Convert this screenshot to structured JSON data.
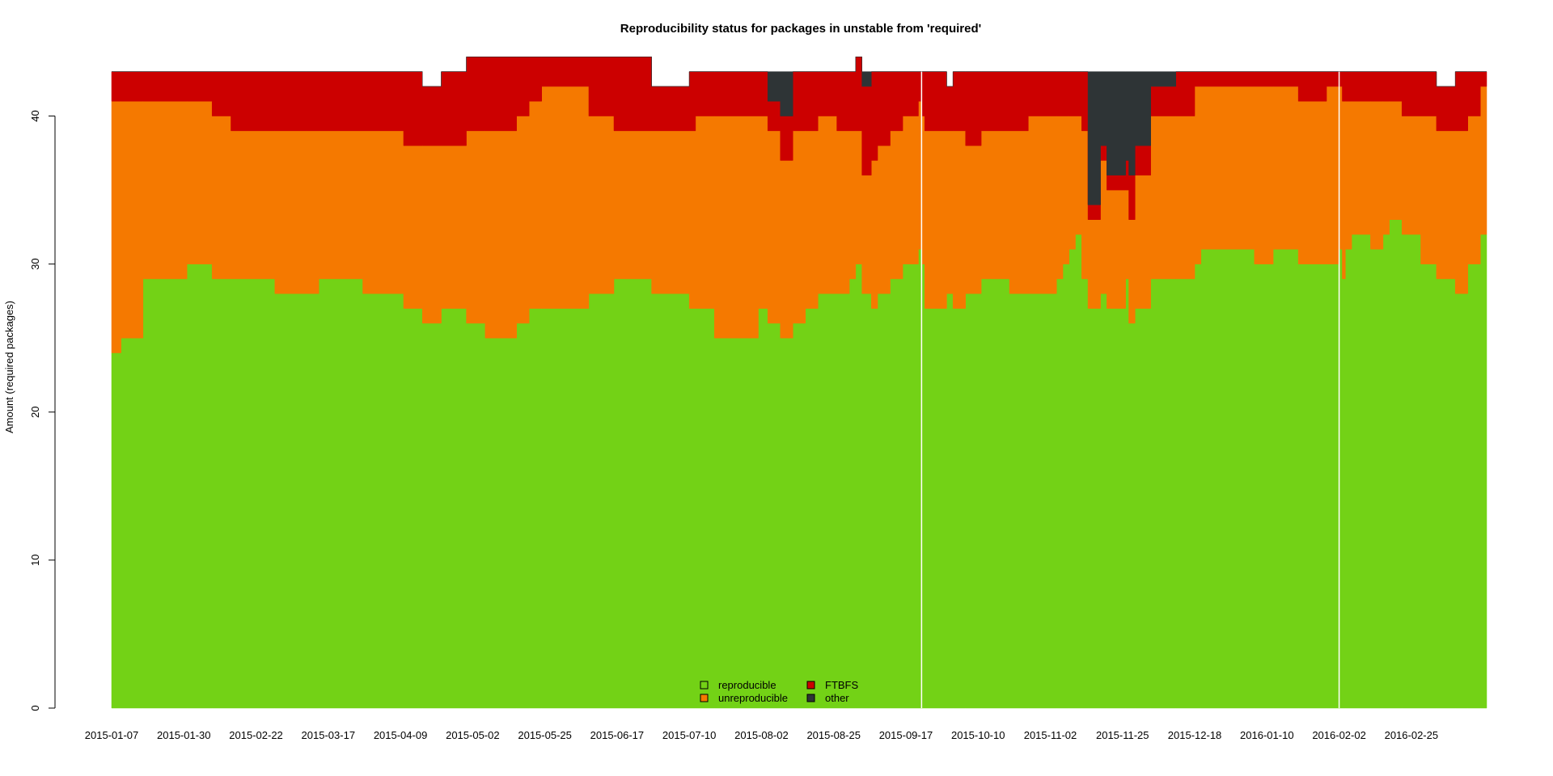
{
  "chart_data": {
    "type": "area",
    "stacked": true,
    "title": "Reproducibility status for packages in unstable from 'required'",
    "xlabel": "",
    "ylabel": "Amount (required packages)",
    "ylim": [
      0,
      43
    ],
    "yticks": [
      0,
      10,
      20,
      30,
      40
    ],
    "x_tick_labels": [
      "2015-01-07",
      "2015-01-30",
      "2015-02-22",
      "2015-03-17",
      "2015-04-09",
      "2015-05-02",
      "2015-05-25",
      "2015-06-17",
      "2015-07-10",
      "2015-08-02",
      "2015-08-25",
      "2015-09-17",
      "2015-10-10",
      "2015-11-02",
      "2015-11-25",
      "2015-12-18",
      "2016-01-10",
      "2016-02-02",
      "2016-02-25"
    ],
    "x_range": [
      "2015-01-07",
      "2016-03-20"
    ],
    "grid": false,
    "legend_position": "bottom-center",
    "colors": {
      "reproducible": "#73d216",
      "unreproducible": "#f57900",
      "FTBFS": "#cc0000",
      "other": "#2e3436",
      "legend_border": "#000000"
    },
    "legend": [
      {
        "name": "reproducible",
        "color": "#73d216"
      },
      {
        "name": "unreproducible",
        "color": "#f57900"
      },
      {
        "name": "FTBFS",
        "color": "#cc0000"
      },
      {
        "name": "other",
        "color": "#2e3436"
      }
    ],
    "x": [
      "2015-01-07",
      "2015-01-10",
      "2015-01-17",
      "2015-01-31",
      "2015-02-08",
      "2015-02-14",
      "2015-02-28",
      "2015-03-10",
      "2015-03-14",
      "2015-03-28",
      "2015-04-10",
      "2015-04-16",
      "2015-04-22",
      "2015-04-30",
      "2015-05-06",
      "2015-05-16",
      "2015-05-20",
      "2015-05-24",
      "2015-06-08",
      "2015-06-16",
      "2015-06-20",
      "2015-06-28",
      "2015-07-10",
      "2015-07-12",
      "2015-07-18",
      "2015-08-01",
      "2015-08-04",
      "2015-08-08",
      "2015-08-12",
      "2015-08-16",
      "2015-08-20",
      "2015-08-26",
      "2015-08-30",
      "2015-09-01",
      "2015-09-03",
      "2015-09-06",
      "2015-09-08",
      "2015-09-12",
      "2015-09-16",
      "2015-09-21",
      "2015-09-22",
      "2015-09-23",
      "2015-09-30",
      "2015-10-02",
      "2015-10-06",
      "2015-10-11",
      "2015-10-20",
      "2015-10-26",
      "2015-11-04",
      "2015-11-06",
      "2015-11-08",
      "2015-11-10",
      "2015-11-12",
      "2015-11-14",
      "2015-11-18",
      "2015-11-20",
      "2015-11-26",
      "2015-11-27",
      "2015-11-29",
      "2015-12-04",
      "2015-12-12",
      "2015-12-18",
      "2015-12-20",
      "2016-01-06",
      "2016-01-12",
      "2016-01-20",
      "2016-01-29",
      "2016-02-02",
      "2016-02-03",
      "2016-02-04",
      "2016-02-06",
      "2016-02-12",
      "2016-02-16",
      "2016-02-18",
      "2016-02-22",
      "2016-02-28",
      "2016-03-04",
      "2016-03-10",
      "2016-03-14",
      "2016-03-18"
    ],
    "series": [
      {
        "name": "reproducible",
        "values": [
          24,
          25,
          29,
          30,
          29,
          29,
          28,
          28,
          29,
          28,
          27,
          26,
          27,
          26,
          25,
          26,
          27,
          27,
          28,
          29,
          29,
          28,
          27,
          27,
          25,
          27,
          26,
          25,
          26,
          27,
          28,
          28,
          29,
          30,
          28,
          27,
          28,
          29,
          30,
          31,
          30,
          27,
          28,
          27,
          28,
          29,
          28,
          28,
          29,
          30,
          31,
          32,
          29,
          27,
          28,
          27,
          29,
          26,
          27,
          29,
          29,
          30,
          31,
          30,
          31,
          30,
          30,
          31,
          29,
          31,
          32,
          31,
          32,
          33,
          32,
          30,
          29,
          28,
          30,
          32
        ]
      },
      {
        "name": "unreproducible",
        "values": [
          17,
          16,
          12,
          11,
          11,
          10,
          11,
          11,
          10,
          11,
          11,
          12,
          11,
          13,
          14,
          14,
          14,
          15,
          12,
          10,
          10,
          11,
          12,
          13,
          15,
          13,
          13,
          12,
          13,
          12,
          12,
          11,
          10,
          9,
          8,
          10,
          10,
          10,
          10,
          10,
          10,
          12,
          11,
          12,
          10,
          10,
          11,
          12,
          11,
          10,
          9,
          8,
          10,
          6,
          9,
          8,
          6,
          7,
          9,
          11,
          11,
          12,
          11,
          12,
          11,
          11,
          12,
          11,
          12,
          10,
          9,
          10,
          9,
          8,
          8,
          10,
          10,
          11,
          10,
          10
        ]
      },
      {
        "name": "FTBFS",
        "values": [
          2,
          2,
          2,
          2,
          3,
          4,
          4,
          4,
          4,
          4,
          5,
          4,
          5,
          5,
          5,
          4,
          3,
          2,
          4,
          5,
          5,
          3,
          4,
          3,
          3,
          3,
          2,
          3,
          4,
          4,
          3,
          4,
          4,
          5,
          6,
          6,
          5,
          4,
          3,
          2,
          3,
          4,
          3,
          4,
          5,
          4,
          4,
          3,
          3,
          3,
          3,
          3,
          4,
          1,
          1,
          1,
          2,
          3,
          2,
          2,
          3,
          1,
          1,
          1,
          1,
          2,
          1,
          1,
          2,
          2,
          2,
          2,
          2,
          2,
          3,
          3,
          3,
          4,
          3,
          1
        ]
      },
      {
        "name": "other",
        "values": [
          0,
          0,
          0,
          0,
          0,
          0,
          0,
          0,
          0,
          0,
          0,
          0,
          0,
          0,
          0,
          0,
          0,
          0,
          0,
          0,
          0,
          0,
          0,
          0,
          0,
          0,
          2,
          3,
          0,
          0,
          0,
          0,
          0,
          0,
          1,
          0,
          0,
          0,
          0,
          0,
          0,
          0,
          0,
          0,
          0,
          0,
          0,
          0,
          0,
          0,
          0,
          0,
          0,
          9,
          5,
          7,
          6,
          7,
          5,
          1,
          0,
          0,
          0,
          0,
          0,
          0,
          0,
          0,
          0,
          0,
          0,
          0,
          0,
          0,
          0,
          0,
          0,
          0,
          0,
          0
        ]
      }
    ],
    "breaks": [
      "2015-09-22",
      "2016-02-02"
    ]
  }
}
